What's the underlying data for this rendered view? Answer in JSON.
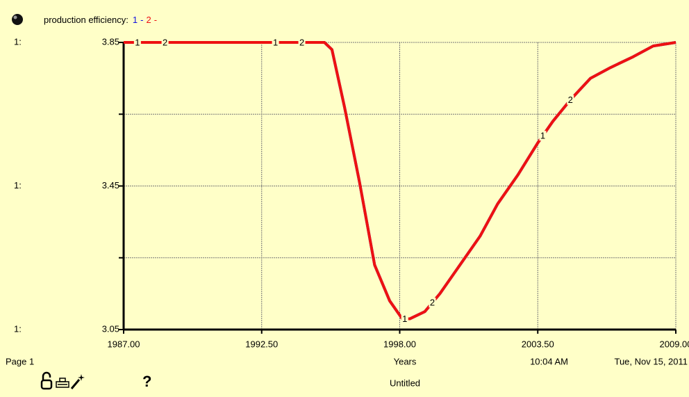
{
  "chart_data": {
    "type": "line",
    "title": "production efficiency:",
    "legend_separator": "-",
    "x": [
      1987,
      1990,
      1993,
      1995,
      1995.3,
      1995.8,
      1996.4,
      1997,
      1997.6,
      1998.1,
      1998.4,
      1999,
      1999.6,
      2000.3,
      2001.2,
      2001.9,
      2002.7,
      2003.5,
      2004.1,
      2004.8,
      2005.6,
      2006.4,
      2007.3,
      2008.1,
      2009
    ],
    "series": [
      {
        "name": "1",
        "color": "#1010e0",
        "values": [
          3.85,
          3.85,
          3.85,
          3.85,
          3.83,
          3.67,
          3.46,
          3.23,
          3.13,
          3.08,
          3.08,
          3.1,
          3.15,
          3.22,
          3.31,
          3.4,
          3.48,
          3.57,
          3.63,
          3.69,
          3.75,
          3.78,
          3.81,
          3.84,
          3.85
        ]
      },
      {
        "name": "2",
        "color": "#ee1111",
        "values": [
          3.85,
          3.85,
          3.85,
          3.85,
          3.83,
          3.67,
          3.46,
          3.23,
          3.13,
          3.08,
          3.08,
          3.1,
          3.15,
          3.22,
          3.31,
          3.4,
          3.48,
          3.57,
          3.63,
          3.69,
          3.75,
          3.78,
          3.81,
          3.84,
          3.85
        ]
      }
    ],
    "xlabel": "Years",
    "xlim": [
      1987,
      2009
    ],
    "xticks": [
      {
        "value": 1987,
        "label": "1987.00"
      },
      {
        "value": 1992.5,
        "label": "1992.50"
      },
      {
        "value": 1998,
        "label": "1998.00"
      },
      {
        "value": 2003.5,
        "label": "2003.50"
      },
      {
        "value": 2009,
        "label": "2009.00"
      }
    ],
    "ylim": [
      3.05,
      3.85
    ],
    "yticks": [
      3.05,
      3.45,
      3.85
    ],
    "y_minor_ticks": [
      3.25,
      3.65
    ],
    "scale_labels": [
      "1:",
      "1:",
      "1:"
    ],
    "grid": true
  },
  "footer": {
    "page": "Page 1",
    "time": "10:04 AM",
    "date": "Tue, Nov 15, 2011",
    "document": "Untitled",
    "help": "?"
  }
}
